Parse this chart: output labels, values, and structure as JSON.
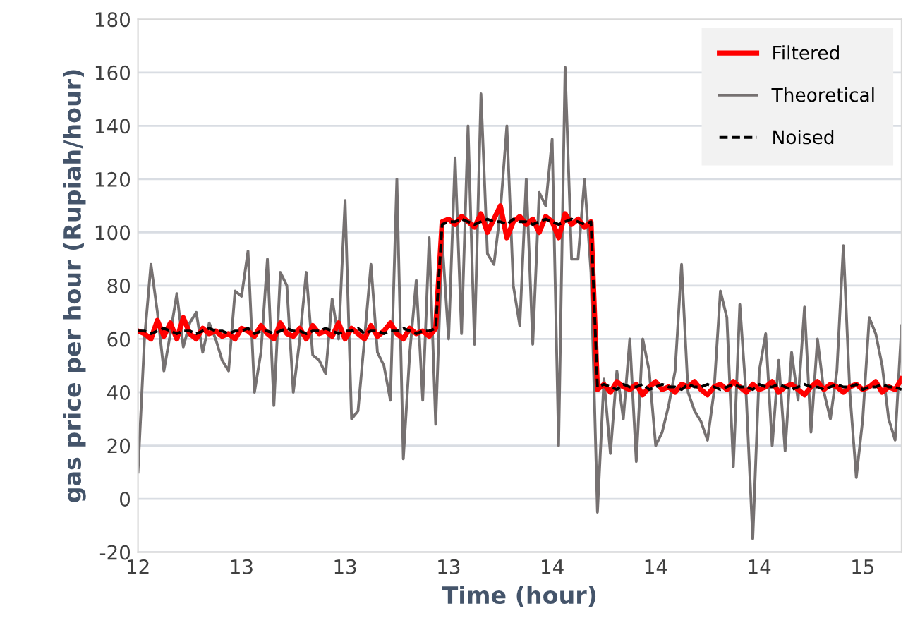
{
  "chart_data": {
    "type": "line",
    "xlabel": "Time (hour)",
    "ylabel": "gas price per hour (Rupiah/hour)",
    "categories": [
      "12",
      null,
      null,
      null,
      null,
      null,
      null,
      null,
      null,
      null,
      null,
      null,
      null,
      null,
      null,
      null,
      "13",
      null,
      null,
      null,
      null,
      null,
      null,
      null,
      null,
      null,
      null,
      null,
      null,
      null,
      null,
      null,
      "13",
      null,
      null,
      null,
      null,
      null,
      null,
      null,
      null,
      null,
      null,
      null,
      null,
      null,
      null,
      null,
      "13",
      null,
      null,
      null,
      null,
      null,
      null,
      null,
      null,
      null,
      null,
      null,
      null,
      null,
      null,
      null,
      "14",
      null,
      null,
      null,
      null,
      null,
      null,
      null,
      null,
      null,
      null,
      null,
      null,
      null,
      null,
      null,
      "14",
      null,
      null,
      null,
      null,
      null,
      null,
      null,
      null,
      null,
      null,
      null,
      null,
      null,
      null,
      null,
      "14",
      null,
      null,
      null,
      null,
      null,
      null,
      null,
      null,
      null,
      null,
      null,
      null,
      null,
      null,
      null,
      "15",
      null,
      null,
      null,
      null,
      null,
      null
    ],
    "series": [
      {
        "name": "Filtered",
        "color": "#ff0000",
        "line_style": "solid",
        "values": [
          63,
          62,
          60,
          67,
          61,
          66,
          60,
          68,
          62,
          60,
          64,
          62,
          63,
          61,
          62,
          60,
          64,
          63,
          61,
          65,
          62,
          60,
          66,
          62,
          61,
          64,
          60,
          65,
          62,
          63,
          61,
          66,
          60,
          64,
          62,
          60,
          65,
          61,
          63,
          66,
          62,
          60,
          64,
          62,
          63,
          61,
          64,
          104,
          105,
          103,
          106,
          104,
          102,
          107,
          100,
          105,
          110,
          98,
          104,
          106,
          103,
          105,
          100,
          106,
          104,
          98,
          107,
          103,
          105,
          102,
          104,
          41,
          43,
          40,
          44,
          42,
          41,
          43,
          39,
          42,
          44,
          41,
          42,
          40,
          43,
          42,
          44,
          41,
          39,
          42,
          43,
          41,
          44,
          42,
          40,
          43,
          41,
          42,
          44,
          40,
          42,
          43,
          41,
          39,
          42,
          44,
          41,
          43,
          42,
          40,
          42,
          43,
          41,
          42,
          44,
          40,
          42,
          41,
          45
        ]
      },
      {
        "name": "Theoretical",
        "color": "#767171",
        "line_style": "solid",
        "values": [
          10,
          60,
          88,
          70,
          48,
          62,
          77,
          57,
          66,
          70,
          55,
          66,
          60,
          52,
          48,
          78,
          76,
          93,
          40,
          55,
          90,
          35,
          85,
          80,
          40,
          60,
          85,
          54,
          52,
          47,
          75,
          60,
          112,
          30,
          33,
          60,
          88,
          55,
          50,
          37,
          120,
          15,
          55,
          82,
          37,
          98,
          28,
          97,
          60,
          128,
          62,
          140,
          58,
          152,
          92,
          88,
          108,
          140,
          80,
          65,
          120,
          58,
          115,
          110,
          135,
          20,
          162,
          90,
          90,
          120,
          85,
          -5,
          45,
          17,
          48,
          30,
          60,
          14,
          60,
          48,
          20,
          25,
          35,
          48,
          88,
          40,
          33,
          29,
          22,
          40,
          78,
          68,
          12,
          73,
          38,
          -15,
          48,
          62,
          20,
          52,
          18,
          55,
          37,
          72,
          25,
          60,
          40,
          30,
          48,
          95,
          40,
          8,
          30,
          68,
          62,
          50,
          30,
          22,
          65
        ]
      },
      {
        "name": "Noised",
        "color": "#000000",
        "line_style": "dashed",
        "values": [
          63,
          63,
          62,
          63,
          64,
          63,
          62,
          63,
          63,
          62,
          63,
          64,
          63,
          63,
          62,
          63,
          63,
          64,
          62,
          63,
          63,
          62,
          63,
          64,
          63,
          63,
          62,
          63,
          63,
          64,
          63,
          62,
          63,
          63,
          64,
          62,
          63,
          63,
          62,
          63,
          63,
          64,
          63,
          62,
          63,
          63,
          64,
          103,
          104,
          104,
          105,
          104,
          103,
          104,
          105,
          104,
          104,
          103,
          105,
          104,
          104,
          103,
          104,
          105,
          104,
          103,
          104,
          105,
          104,
          103,
          104,
          42,
          43,
          42,
          41,
          43,
          42,
          42,
          43,
          41,
          42,
          43,
          42,
          42,
          41,
          43,
          42,
          42,
          43,
          42,
          41,
          42,
          43,
          42,
          42,
          41,
          43,
          42,
          42,
          43,
          42,
          41,
          42,
          43,
          42,
          42,
          41,
          42,
          43,
          42,
          42,
          43,
          41,
          42,
          42,
          43,
          42,
          42,
          41
        ]
      }
    ],
    "ylim": [
      -20,
      180
    ],
    "yticks": [
      -20,
      0,
      20,
      40,
      60,
      80,
      100,
      120,
      140,
      160,
      180
    ],
    "grid": "y",
    "legend": "top right",
    "marker": "none"
  }
}
